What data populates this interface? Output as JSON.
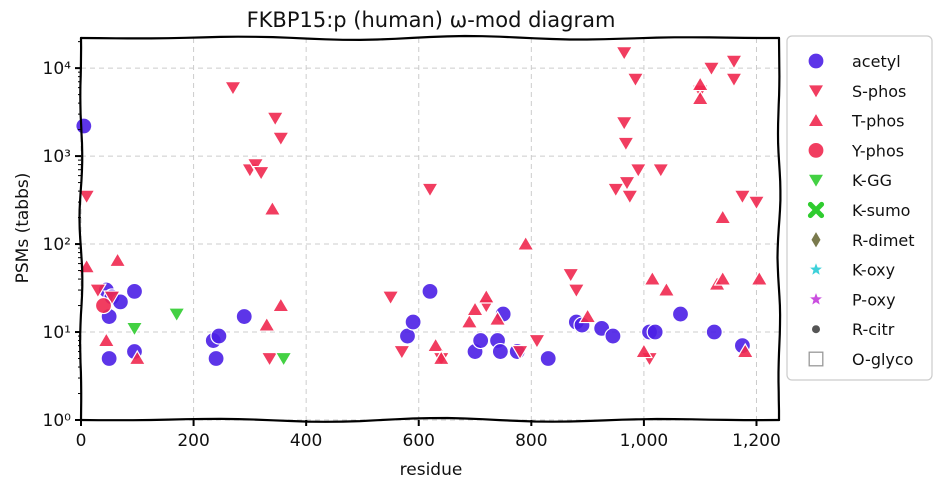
{
  "chart_data": {
    "type": "scatter",
    "title": "FKBP15:p (human) ω-mod diagram",
    "xlabel": "residue",
    "ylabel": "PSMs (tabbs)",
    "xlim": [
      0,
      1240
    ],
    "ylim": [
      1,
      22000
    ],
    "yscale": "log",
    "grid": true,
    "legend_position": "outside-right",
    "x_ticks": [
      0,
      200,
      400,
      600,
      800,
      1000,
      1200
    ],
    "x_tick_labels": [
      "0",
      "200",
      "400",
      "600",
      "800",
      "1,000",
      "1,200"
    ],
    "y_ticks": [
      1,
      10,
      100,
      1000,
      10000
    ],
    "y_tick_labels": [
      "10⁰",
      "10¹",
      "10²",
      "10³",
      "10⁴"
    ],
    "series": [
      {
        "name": "acetyl",
        "marker": "circle",
        "color": "#4b1fe6",
        "points": [
          [
            5,
            2200
          ],
          [
            45,
            30
          ],
          [
            50,
            15
          ],
          [
            50,
            5
          ],
          [
            55,
            25
          ],
          [
            70,
            22
          ],
          [
            95,
            6
          ],
          [
            95,
            29
          ],
          [
            235,
            8
          ],
          [
            240,
            5
          ],
          [
            245,
            9
          ],
          [
            290,
            15
          ],
          [
            580,
            9
          ],
          [
            590,
            13
          ],
          [
            620,
            29
          ],
          [
            700,
            6
          ],
          [
            710,
            8
          ],
          [
            740,
            8
          ],
          [
            745,
            6
          ],
          [
            750,
            16
          ],
          [
            775,
            6
          ],
          [
            830,
            5
          ],
          [
            880,
            13
          ],
          [
            890,
            12
          ],
          [
            925,
            11
          ],
          [
            945,
            9
          ],
          [
            1010,
            10
          ],
          [
            1020,
            10
          ],
          [
            1065,
            16
          ],
          [
            1125,
            10
          ],
          [
            1175,
            7
          ]
        ]
      },
      {
        "name": "S-phos",
        "marker": "triangle-down",
        "color": "#f0284f",
        "points": [
          [
            10,
            350
          ],
          [
            30,
            30
          ],
          [
            55,
            25
          ],
          [
            270,
            6000
          ],
          [
            300,
            700
          ],
          [
            310,
            800
          ],
          [
            320,
            650
          ],
          [
            335,
            5
          ],
          [
            345,
            2700
          ],
          [
            355,
            1600
          ],
          [
            550,
            25
          ],
          [
            570,
            6
          ],
          [
            620,
            420
          ],
          [
            640,
            5
          ],
          [
            720,
            20
          ],
          [
            780,
            6
          ],
          [
            810,
            8
          ],
          [
            870,
            45
          ],
          [
            880,
            30
          ],
          [
            950,
            420
          ],
          [
            965,
            15000
          ],
          [
            965,
            2400
          ],
          [
            968,
            1400
          ],
          [
            970,
            500
          ],
          [
            975,
            350
          ],
          [
            985,
            7500
          ],
          [
            990,
            700
          ],
          [
            1010,
            5
          ],
          [
            1030,
            700
          ],
          [
            1100,
            5500
          ],
          [
            1120,
            10000
          ],
          [
            1160,
            12000
          ],
          [
            1160,
            7500
          ],
          [
            1175,
            350
          ],
          [
            1200,
            300
          ]
        ]
      },
      {
        "name": "T-phos",
        "marker": "triangle-up",
        "color": "#f0284f",
        "points": [
          [
            10,
            55
          ],
          [
            45,
            8
          ],
          [
            65,
            65
          ],
          [
            100,
            5
          ],
          [
            330,
            12
          ],
          [
            340,
            250
          ],
          [
            355,
            20
          ],
          [
            630,
            7
          ],
          [
            640,
            5
          ],
          [
            690,
            13
          ],
          [
            700,
            18
          ],
          [
            720,
            25
          ],
          [
            740,
            14
          ],
          [
            790,
            100
          ],
          [
            900,
            15
          ],
          [
            1000,
            6
          ],
          [
            1015,
            40
          ],
          [
            1040,
            30
          ],
          [
            1100,
            4500
          ],
          [
            1100,
            6500
          ],
          [
            1130,
            35
          ],
          [
            1140,
            40
          ],
          [
            1140,
            200
          ],
          [
            1180,
            6
          ],
          [
            1205,
            40
          ]
        ]
      },
      {
        "name": "Y-phos",
        "marker": "circle",
        "color": "#f0284f",
        "points": [
          [
            40,
            20
          ]
        ]
      },
      {
        "name": "K-GG",
        "marker": "triangle-down",
        "color": "#2fcc2f",
        "points": [
          [
            95,
            11
          ],
          [
            170,
            16
          ],
          [
            360,
            5
          ]
        ]
      },
      {
        "name": "K-sumo",
        "marker": "x",
        "color": "#2fcc2f",
        "points": []
      },
      {
        "name": "R-dimet",
        "marker": "diamond",
        "color": "#6b6b3a",
        "points": []
      },
      {
        "name": "K-oxy",
        "marker": "star",
        "color": "#29ccd6",
        "points": []
      },
      {
        "name": "P-oxy",
        "marker": "star",
        "color": "#c43bdc",
        "points": []
      },
      {
        "name": "R-citr",
        "marker": "point",
        "color": "#555555",
        "points": []
      },
      {
        "name": "O-glyco",
        "marker": "square-open",
        "color": "#999999",
        "points": []
      }
    ]
  }
}
